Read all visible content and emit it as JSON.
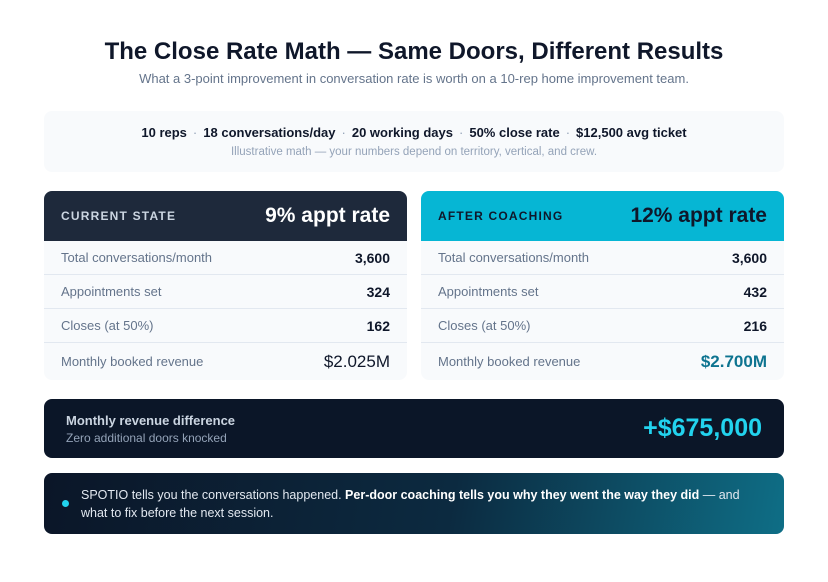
{
  "header": {
    "title": "The Close Rate Math — Same Doors, Different Results",
    "subtitle": "What a 3-point improvement in conversation rate is worth on a 10-rep home improvement team."
  },
  "assumptions": {
    "items": [
      "10 reps",
      "18 conversations/day",
      "20 working days",
      "50% close rate",
      "$12,500 avg ticket"
    ],
    "separator": "·",
    "note": "Illustrative math — your numbers depend on territory, vertical, and crew."
  },
  "current": {
    "label": "CURRENT STATE",
    "rate": "9% appt rate",
    "rows": [
      {
        "label": "Total conversations/month",
        "value": "3,600"
      },
      {
        "label": "Appointments set",
        "value": "324"
      },
      {
        "label": "Closes (at 50%)",
        "value": "162"
      },
      {
        "label": "Monthly booked revenue",
        "value": "$2.025M"
      }
    ]
  },
  "after": {
    "label": "AFTER COACHING",
    "rate": "12% appt rate",
    "rows": [
      {
        "label": "Total conversations/month",
        "value": "3,600"
      },
      {
        "label": "Appointments set",
        "value": "432"
      },
      {
        "label": "Closes (at 50%)",
        "value": "216"
      },
      {
        "label": "Monthly booked revenue",
        "value": "$2.700M"
      }
    ]
  },
  "difference": {
    "title": "Monthly revenue difference",
    "subtitle": "Zero additional doors knocked",
    "value": "+$675,000"
  },
  "callout": {
    "lead": "SPOTIO tells you the conversations happened. ",
    "bold": "Per-door coaching tells you why they went the way they did",
    "tail": " — and what to fix before the next session."
  },
  "colors": {
    "dark_card": "#1e293b",
    "accent": "#06b6d4",
    "accent_text": "#22d3ee",
    "panel_bg": "#0b1628"
  }
}
